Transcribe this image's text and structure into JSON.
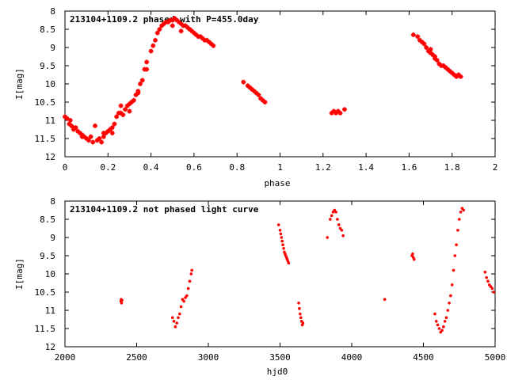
{
  "colors": {
    "points": "#ff0000",
    "axes": "#000000",
    "background": "#ffffff"
  },
  "chart_data": [
    {
      "type": "scatter",
      "title": "213104+1109.2 phased with P=455.0day",
      "xlabel": "phase",
      "ylabel": "I[mag]",
      "xlim": [
        0,
        2
      ],
      "ylim": [
        12,
        8
      ],
      "y_inverted": true,
      "grid": false,
      "marker": "plus",
      "x_ticks": [
        "0",
        "0.2",
        "0.4",
        "0.6",
        "0.8",
        "1",
        "1.2",
        "1.4",
        "1.6",
        "1.8",
        "2"
      ],
      "y_ticks": [
        "8",
        "8.5",
        "9",
        "9.5",
        "10",
        "10.5",
        "11",
        "11.5",
        "12"
      ],
      "series": [
        {
          "points": [
            [
              0.0,
              10.9
            ],
            [
              0.01,
              10.95
            ],
            [
              0.02,
              11.1
            ],
            [
              0.025,
              11.0
            ],
            [
              0.03,
              11.15
            ],
            [
              0.04,
              11.2
            ],
            [
              0.05,
              11.2
            ],
            [
              0.06,
              11.3
            ],
            [
              0.07,
              11.35
            ],
            [
              0.08,
              11.4
            ],
            [
              0.09,
              11.45
            ],
            [
              0.1,
              11.5
            ],
            [
              0.11,
              11.55
            ],
            [
              0.12,
              11.45
            ],
            [
              0.13,
              11.6
            ],
            [
              0.15,
              11.55
            ],
            [
              0.16,
              11.5
            ],
            [
              0.17,
              11.6
            ],
            [
              0.18,
              11.45
            ],
            [
              0.19,
              11.35
            ],
            [
              0.2,
              11.3
            ],
            [
              0.21,
              11.25
            ],
            [
              0.22,
              11.2
            ],
            [
              0.23,
              11.1
            ],
            [
              0.24,
              10.9
            ],
            [
              0.25,
              10.8
            ],
            [
              0.26,
              10.6
            ],
            [
              0.27,
              10.85
            ],
            [
              0.28,
              10.7
            ],
            [
              0.29,
              10.6
            ],
            [
              0.3,
              10.55
            ],
            [
              0.31,
              10.5
            ],
            [
              0.32,
              10.45
            ],
            [
              0.33,
              10.3
            ],
            [
              0.34,
              10.2
            ],
            [
              0.35,
              10.0
            ],
            [
              0.36,
              9.9
            ],
            [
              0.37,
              9.6
            ],
            [
              0.38,
              9.4
            ],
            [
              0.4,
              9.1
            ],
            [
              0.41,
              8.95
            ],
            [
              0.42,
              8.8
            ],
            [
              0.43,
              8.6
            ],
            [
              0.44,
              8.5
            ],
            [
              0.45,
              8.4
            ],
            [
              0.46,
              8.35
            ],
            [
              0.47,
              8.3
            ],
            [
              0.48,
              8.3
            ],
            [
              0.49,
              8.25
            ],
            [
              0.5,
              8.25
            ],
            [
              0.51,
              8.2
            ],
            [
              0.52,
              8.25
            ],
            [
              0.53,
              8.3
            ],
            [
              0.54,
              8.35
            ],
            [
              0.55,
              8.4
            ],
            [
              0.56,
              8.4
            ],
            [
              0.57,
              8.45
            ],
            [
              0.58,
              8.5
            ],
            [
              0.59,
              8.55
            ],
            [
              0.6,
              8.6
            ],
            [
              0.61,
              8.65
            ],
            [
              0.62,
              8.7
            ],
            [
              0.63,
              8.7
            ],
            [
              0.64,
              8.75
            ],
            [
              0.65,
              8.8
            ],
            [
              0.66,
              8.8
            ],
            [
              0.67,
              8.85
            ],
            [
              0.68,
              8.9
            ],
            [
              0.69,
              8.95
            ],
            [
              0.04,
              11.25
            ],
            [
              0.08,
              11.45
            ],
            [
              0.14,
              11.15
            ],
            [
              0.18,
              11.35
            ],
            [
              0.22,
              11.35
            ],
            [
              0.26,
              10.8
            ],
            [
              0.3,
              10.75
            ],
            [
              0.34,
              10.25
            ],
            [
              0.38,
              9.6
            ],
            [
              0.5,
              8.4
            ],
            [
              0.54,
              8.55
            ],
            [
              0.83,
              9.95
            ],
            [
              0.85,
              10.05
            ],
            [
              0.86,
              10.1
            ],
            [
              0.87,
              10.15
            ],
            [
              0.88,
              10.2
            ],
            [
              0.89,
              10.25
            ],
            [
              0.9,
              10.3
            ],
            [
              0.91,
              10.4
            ],
            [
              0.92,
              10.45
            ],
            [
              0.93,
              10.5
            ],
            [
              1.24,
              10.8
            ],
            [
              1.25,
              10.75
            ],
            [
              1.26,
              10.8
            ],
            [
              1.27,
              10.75
            ],
            [
              1.28,
              10.8
            ],
            [
              1.3,
              10.7
            ],
            [
              1.62,
              8.65
            ],
            [
              1.64,
              8.7
            ],
            [
              1.65,
              8.8
            ],
            [
              1.66,
              8.85
            ],
            [
              1.67,
              8.9
            ],
            [
              1.68,
              9.0
            ],
            [
              1.69,
              9.1
            ],
            [
              1.7,
              9.15
            ],
            [
              1.71,
              9.2
            ],
            [
              1.72,
              9.3
            ],
            [
              1.73,
              9.35
            ],
            [
              1.74,
              9.45
            ],
            [
              1.75,
              9.5
            ],
            [
              1.76,
              9.5
            ],
            [
              1.77,
              9.55
            ],
            [
              1.78,
              9.6
            ],
            [
              1.79,
              9.65
            ],
            [
              1.8,
              9.7
            ],
            [
              1.81,
              9.75
            ],
            [
              1.82,
              9.8
            ],
            [
              1.83,
              9.75
            ],
            [
              1.84,
              9.8
            ],
            [
              1.7,
              9.05
            ],
            [
              1.72,
              9.25
            ]
          ]
        }
      ]
    },
    {
      "type": "scatter",
      "title": "213104+1109.2 not phased light curve",
      "xlabel": "hjd0",
      "ylabel": "I[mag]",
      "xlim": [
        2000,
        5000
      ],
      "ylim": [
        12,
        8
      ],
      "y_inverted": true,
      "grid": false,
      "marker": "dot",
      "x_ticks": [
        "2000",
        "2500",
        "3000",
        "3500",
        "4000",
        "4500",
        "5000"
      ],
      "y_ticks": [
        "8",
        "8.5",
        "9",
        "9.5",
        "10",
        "10.5",
        "11",
        "11.5",
        "12"
      ],
      "series": [
        {
          "points": [
            [
              2390,
              10.75
            ],
            [
              2392,
              10.7
            ],
            [
              2395,
              10.8
            ],
            [
              2398,
              10.72
            ],
            [
              2750,
              11.2
            ],
            [
              2760,
              11.3
            ],
            [
              2770,
              11.45
            ],
            [
              2780,
              11.35
            ],
            [
              2790,
              11.2
            ],
            [
              2800,
              11.1
            ],
            [
              2810,
              10.9
            ],
            [
              2820,
              10.7
            ],
            [
              2830,
              10.75
            ],
            [
              2840,
              10.65
            ],
            [
              2850,
              10.6
            ],
            [
              2860,
              10.4
            ],
            [
              2870,
              10.2
            ],
            [
              2880,
              10.0
            ],
            [
              2885,
              9.9
            ],
            [
              3490,
              8.65
            ],
            [
              3500,
              8.8
            ],
            [
              3505,
              8.9
            ],
            [
              3510,
              9.0
            ],
            [
              3515,
              9.1
            ],
            [
              3520,
              9.2
            ],
            [
              3525,
              9.3
            ],
            [
              3530,
              9.4
            ],
            [
              3535,
              9.45
            ],
            [
              3540,
              9.5
            ],
            [
              3545,
              9.55
            ],
            [
              3550,
              9.6
            ],
            [
              3555,
              9.65
            ],
            [
              3560,
              9.7
            ],
            [
              3630,
              10.8
            ],
            [
              3635,
              10.95
            ],
            [
              3640,
              11.1
            ],
            [
              3645,
              11.2
            ],
            [
              3650,
              11.3
            ],
            [
              3655,
              11.4
            ],
            [
              3660,
              11.35
            ],
            [
              3830,
              9.0
            ],
            [
              3850,
              8.5
            ],
            [
              3860,
              8.4
            ],
            [
              3870,
              8.3
            ],
            [
              3880,
              8.25
            ],
            [
              3890,
              8.3
            ],
            [
              3900,
              8.5
            ],
            [
              3910,
              8.65
            ],
            [
              3920,
              8.75
            ],
            [
              3930,
              8.8
            ],
            [
              3940,
              8.95
            ],
            [
              4230,
              10.7
            ],
            [
              4420,
              9.5
            ],
            [
              4425,
              9.45
            ],
            [
              4430,
              9.55
            ],
            [
              4435,
              9.6
            ],
            [
              4580,
              11.1
            ],
            [
              4590,
              11.3
            ],
            [
              4600,
              11.4
            ],
            [
              4610,
              11.5
            ],
            [
              4620,
              11.6
            ],
            [
              4630,
              11.55
            ],
            [
              4640,
              11.45
            ],
            [
              4650,
              11.3
            ],
            [
              4660,
              11.2
            ],
            [
              4670,
              11.0
            ],
            [
              4680,
              10.8
            ],
            [
              4690,
              10.6
            ],
            [
              4700,
              10.3
            ],
            [
              4710,
              9.9
            ],
            [
              4720,
              9.5
            ],
            [
              4730,
              9.2
            ],
            [
              4740,
              8.8
            ],
            [
              4750,
              8.5
            ],
            [
              4760,
              8.3
            ],
            [
              4770,
              8.2
            ],
            [
              4780,
              8.25
            ],
            [
              4930,
              9.95
            ],
            [
              4940,
              10.1
            ],
            [
              4950,
              10.2
            ],
            [
              4960,
              10.3
            ],
            [
              4970,
              10.35
            ],
            [
              4980,
              10.4
            ],
            [
              4990,
              10.5
            ]
          ]
        }
      ]
    }
  ]
}
